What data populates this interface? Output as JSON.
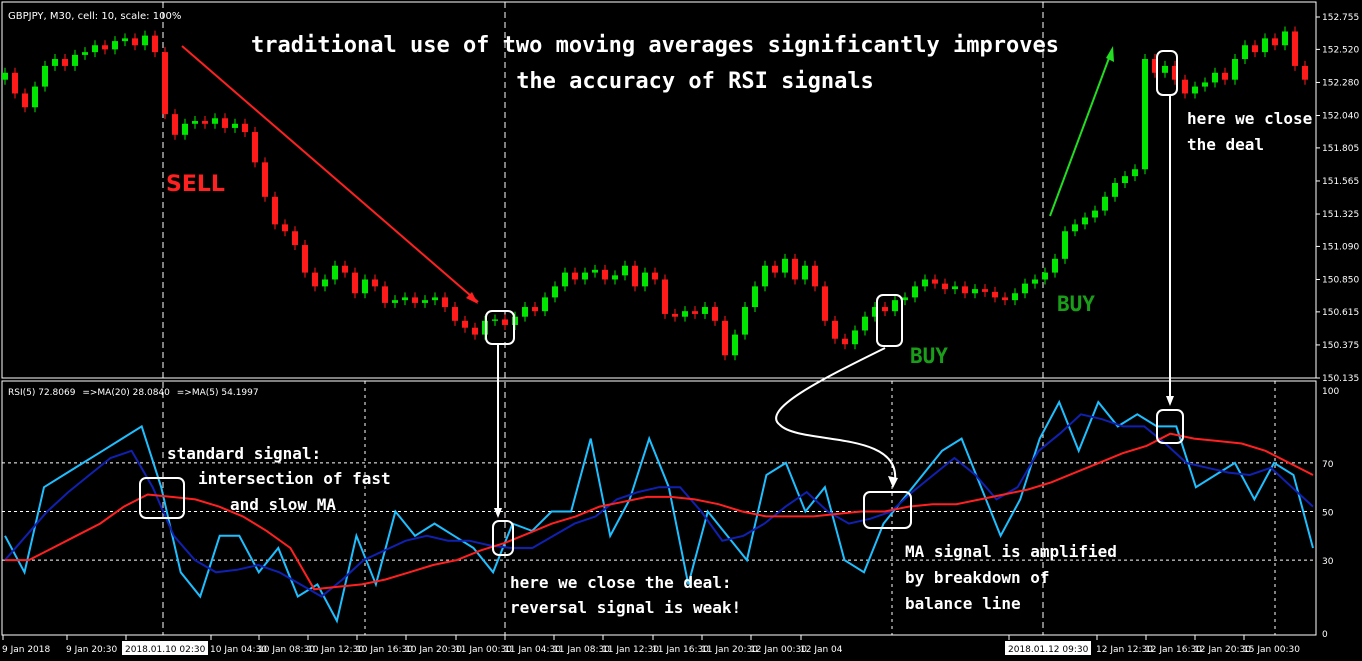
{
  "header": {
    "title": "GBPJPY, M30, cell: 10, scale: 100%"
  },
  "indicator_label": {
    "rsi": "RSI(5) 72.8069",
    "ma20": "=>MA(20) 28.0840",
    "ma5": "=>MA(5) 54.1997"
  },
  "colors": {
    "bull": "#00e600",
    "bear": "#ff1a1a",
    "rsi": "#1fbfff",
    "ma_fast": "#1020b0",
    "ma_slow": "#ff2020",
    "buy_text": "#1a9e1a",
    "sell_text": "#ff2020"
  },
  "chart_data": [
    {
      "type": "candlestick",
      "title": "GBPJPY, M30",
      "ylim": [
        150.135,
        152.755
      ],
      "y_ticks": [
        "152.755",
        "152.520",
        "152.280",
        "152.040",
        "151.805",
        "151.565",
        "151.325",
        "151.090",
        "150.850",
        "150.615",
        "150.375",
        "150.135"
      ],
      "closes": [
        152.35,
        152.2,
        152.1,
        152.25,
        152.4,
        152.45,
        152.4,
        152.48,
        152.5,
        152.55,
        152.52,
        152.58,
        152.6,
        152.55,
        152.62,
        152.5,
        152.05,
        151.9,
        151.98,
        152.0,
        151.98,
        152.02,
        151.95,
        151.98,
        151.92,
        151.7,
        151.45,
        151.25,
        151.2,
        151.1,
        150.9,
        150.8,
        150.85,
        150.95,
        150.9,
        150.75,
        150.85,
        150.8,
        150.68,
        150.7,
        150.72,
        150.68,
        150.7,
        150.72,
        150.65,
        150.55,
        150.5,
        150.45,
        150.55,
        150.56,
        150.52,
        150.58,
        150.65,
        150.62,
        150.72,
        150.8,
        150.9,
        150.85,
        150.9,
        150.92,
        150.85,
        150.88,
        150.95,
        150.8,
        150.9,
        150.85,
        150.6,
        150.58,
        150.62,
        150.6,
        150.65,
        150.55,
        150.3,
        150.45,
        150.65,
        150.8,
        150.95,
        150.9,
        151.0,
        150.85,
        150.95,
        150.8,
        150.55,
        150.42,
        150.38,
        150.48,
        150.58,
        150.65,
        150.62,
        150.7,
        150.72,
        150.8,
        150.85,
        150.82,
        150.78,
        150.8,
        150.75,
        150.78,
        150.76,
        150.72,
        150.7,
        150.75,
        150.82,
        150.85,
        150.9,
        151.0,
        151.2,
        151.25,
        151.3,
        151.35,
        151.45,
        151.55,
        151.6,
        151.65,
        152.45,
        152.35,
        152.4,
        152.3,
        152.2,
        152.25,
        152.28,
        152.35,
        152.3,
        152.45,
        152.55,
        152.5,
        152.6,
        152.55,
        152.65,
        152.4,
        152.3
      ]
    },
    {
      "type": "line",
      "title": "RSI(5)",
      "ylim": [
        0,
        100
      ],
      "y_ticks": [
        "100",
        "70",
        "50",
        "30",
        "0"
      ],
      "hlines": [
        70,
        50,
        30
      ],
      "series": [
        {
          "name": "RSI(5)",
          "values": [
            40,
            25,
            60,
            65,
            70,
            75,
            80,
            85,
            60,
            25,
            15,
            40,
            40,
            25,
            35,
            15,
            20,
            5,
            40,
            20,
            50,
            40,
            45,
            40,
            35,
            25,
            45,
            42,
            50,
            50,
            80,
            40,
            55,
            80,
            60,
            20,
            50,
            40,
            30,
            65,
            70,
            50,
            60,
            30,
            25,
            45,
            55,
            65,
            75,
            80,
            60,
            40,
            55,
            80,
            95,
            75,
            95,
            85,
            90,
            85,
            85,
            60,
            65,
            70,
            55,
            70,
            65,
            35
          ]
        },
        {
          "name": "MA(5)",
          "values": [
            30,
            40,
            50,
            58,
            65,
            72,
            75,
            60,
            40,
            30,
            25,
            26,
            28,
            25,
            20,
            15,
            22,
            30,
            34,
            38,
            40,
            38,
            38,
            36,
            35,
            35,
            40,
            45,
            48,
            55,
            58,
            60,
            60,
            50,
            38,
            40,
            45,
            52,
            58,
            50,
            45,
            47,
            50,
            58,
            65,
            72,
            65,
            55,
            60,
            75,
            82,
            90,
            88,
            85,
            85,
            78,
            70,
            68,
            66,
            65,
            68,
            60,
            52
          ]
        },
        {
          "name": "MA(20)",
          "values": [
            30,
            30,
            35,
            40,
            45,
            52,
            57,
            56,
            55,
            52,
            48,
            42,
            35,
            18,
            19,
            20,
            22,
            25,
            28,
            30,
            34,
            37,
            41,
            45,
            48,
            52,
            54,
            56,
            56,
            55,
            53,
            50,
            48,
            48,
            48,
            49,
            50,
            50,
            52,
            53,
            53,
            55,
            57,
            59,
            62,
            66,
            70,
            74,
            77,
            82,
            80,
            79,
            78,
            75,
            70,
            65
          ]
        }
      ]
    }
  ],
  "x_axis": {
    "labels": [
      "9 Jan 2018",
      "9 Jan 20:30",
      "2018.01.10 02:30",
      "10 Jan 04:30",
      "10 Jan 08:30",
      "10 Jan 12:30",
      "10 Jan 16:30",
      "10 Jan 20:30",
      "11 Jan 00:30",
      "11 Jan 04:30",
      "11 Jan 08:30",
      "11 Jan 12:30",
      "11 Jan 16:30",
      "11 Jan 20:30",
      "12 Jan 00:30",
      "12 Jan 04",
      "2018.01.12 09:30",
      "12 Jan 12:30",
      "12 Jan 16:30",
      "12 Jan 20:30",
      "15 Jan 00:30"
    ]
  },
  "annotations": {
    "headline_1": "traditional use of two moving averages significantly improves",
    "headline_2": "the accuracy of RSI signals",
    "sell": "SELL",
    "buy_1": "BUY",
    "buy_2": "BUY",
    "close_top_1": "here we close",
    "close_top_2": "the deal",
    "std_1": "standard signal:",
    "std_2": "intersection of fast",
    "std_3": "and slow MA",
    "close_bottom_1": "here we close the deal:",
    "close_bottom_2": "reversal signal is weak!",
    "amp_1": "MA signal is amplified",
    "amp_2": "by breakdown of",
    "amp_3": "balance line"
  }
}
